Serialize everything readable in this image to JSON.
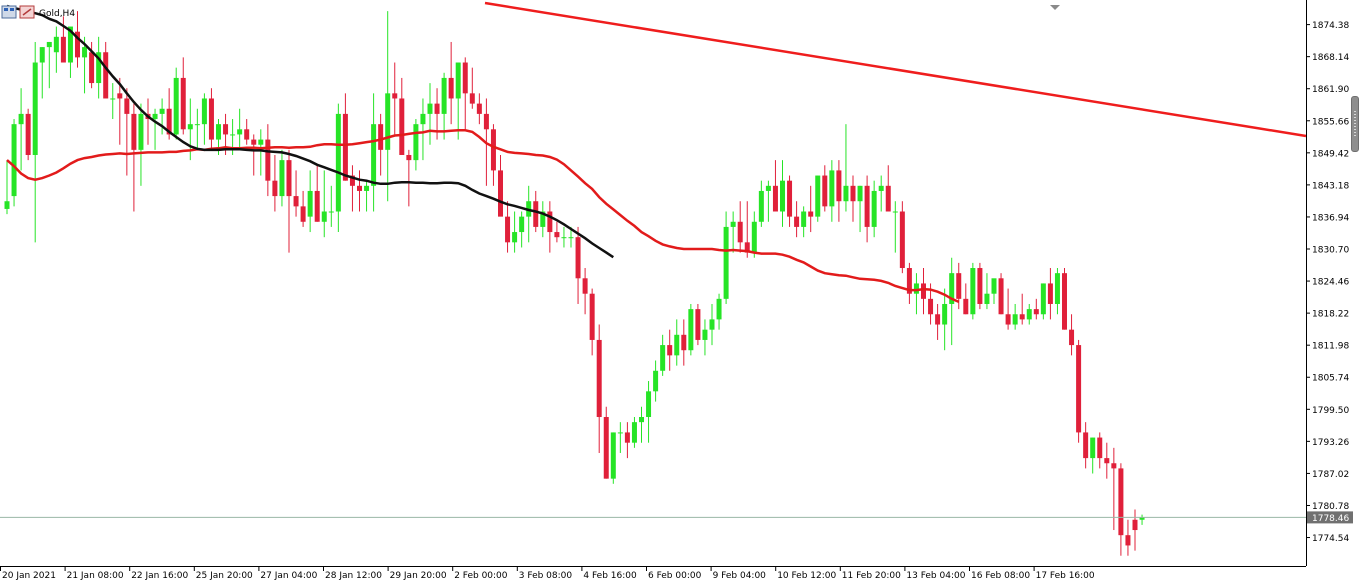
{
  "header": {
    "symbol_title": "Gold,H4"
  },
  "colors": {
    "bull": "#26e426",
    "bear": "#e0203a",
    "ma_red": "#e21b1b",
    "ma_black": "#111111",
    "trendline": "#ef1d1d",
    "price_line": "#9ab7a6"
  },
  "chart_data": {
    "type": "candlestick",
    "title": "Gold,H4",
    "ylim": [
      1769.0,
      1878.0
    ],
    "y_ticks": [
      1874.38,
      1868.14,
      1861.9,
      1855.66,
      1849.42,
      1843.18,
      1836.94,
      1830.7,
      1824.46,
      1818.22,
      1811.98,
      1805.74,
      1799.5,
      1793.26,
      1787.02,
      1780.78,
      1774.54
    ],
    "current_price": "1778.46",
    "x_labels": [
      "20 Jan 2021",
      "21 Jan 08:00",
      "22 Jan 16:00",
      "25 Jan 20:00",
      "27 Jan 04:00",
      "28 Jan 12:00",
      "29 Jan 20:00",
      "2 Feb 00:00",
      "3 Feb 08:00",
      "4 Feb 16:00",
      "6 Feb 00:00",
      "9 Feb 04:00",
      "10 Feb 12:00",
      "11 Feb 20:00",
      "13 Feb 04:00",
      "16 Feb 08:00",
      "17 Feb 16:00"
    ],
    "candles_ohlc": [
      [
        1838.5,
        1848.0,
        1837.5,
        1840.0
      ],
      [
        1841.0,
        1856.0,
        1839.0,
        1855.0
      ],
      [
        1855.0,
        1862.0,
        1846.0,
        1857.0
      ],
      [
        1857.0,
        1858.0,
        1848.0,
        1849.0
      ],
      [
        1849.0,
        1871.0,
        1832.0,
        1867.0
      ],
      [
        1867.0,
        1870.0,
        1860.0,
        1870.0
      ],
      [
        1870.0,
        1871.0,
        1862.0,
        1871.0
      ],
      [
        1869.0,
        1874.0,
        1865.0,
        1872.0
      ],
      [
        1872.0,
        1876.0,
        1867.0,
        1867.0
      ],
      [
        1867.0,
        1872.0,
        1864.0,
        1874.0
      ],
      [
        1873.0,
        1877.0,
        1866.0,
        1868.0
      ],
      [
        1868.0,
        1872.0,
        1861.0,
        1870.0
      ],
      [
        1869.0,
        1871.0,
        1862.0,
        1863.0
      ],
      [
        1863.0,
        1872.0,
        1860.0,
        1869.0
      ],
      [
        1869.0,
        1871.0,
        1862.0,
        1860.0
      ],
      [
        1860.0,
        1863.0,
        1856.0,
        1860.0
      ],
      [
        1861.0,
        1864.0,
        1851.0,
        1860.0
      ],
      [
        1860.0,
        1862.0,
        1845.0,
        1857.0
      ],
      [
        1857.0,
        1859.0,
        1838.0,
        1850.0
      ],
      [
        1850.0,
        1859.0,
        1843.0,
        1857.0
      ],
      [
        1857.0,
        1860.0,
        1851.0,
        1856.0
      ],
      [
        1856.0,
        1858.0,
        1850.0,
        1857.0
      ],
      [
        1857.0,
        1860.0,
        1853.0,
        1858.0
      ],
      [
        1858.0,
        1862.0,
        1852.0,
        1853.0
      ],
      [
        1853.0,
        1866.0,
        1852.0,
        1864.0
      ],
      [
        1864.0,
        1868.0,
        1853.0,
        1854.0
      ],
      [
        1854.0,
        1860.0,
        1848.0,
        1855.0
      ],
      [
        1855.0,
        1858.0,
        1850.0,
        1855.0
      ],
      [
        1855.0,
        1861.0,
        1851.0,
        1860.0
      ],
      [
        1860.0,
        1862.0,
        1850.0,
        1852.0
      ],
      [
        1852.0,
        1856.0,
        1849.0,
        1855.0
      ],
      [
        1855.0,
        1857.0,
        1849.0,
        1853.0
      ],
      [
        1853.0,
        1856.0,
        1849.0,
        1853.0
      ],
      [
        1853.0,
        1858.0,
        1850.0,
        1854.0
      ],
      [
        1854.0,
        1856.0,
        1851.0,
        1852.0
      ],
      [
        1852.0,
        1853.0,
        1845.0,
        1851.0
      ],
      [
        1851.0,
        1854.0,
        1845.0,
        1852.0
      ],
      [
        1852.0,
        1855.0,
        1841.0,
        1844.0
      ],
      [
        1844.0,
        1849.0,
        1838.0,
        1841.0
      ],
      [
        1841.0,
        1850.0,
        1839.0,
        1848.0
      ],
      [
        1848.0,
        1850.0,
        1830.0,
        1841.0
      ],
      [
        1841.0,
        1846.0,
        1837.0,
        1839.0
      ],
      [
        1839.0,
        1842.0,
        1835.0,
        1836.0
      ],
      [
        1837.0,
        1846.0,
        1834.0,
        1842.0
      ],
      [
        1842.0,
        1847.0,
        1836.0,
        1836.0
      ],
      [
        1836.0,
        1846.0,
        1833.0,
        1838.0
      ],
      [
        1838.0,
        1843.0,
        1835.0,
        1838.0
      ],
      [
        1838.0,
        1859.0,
        1834.0,
        1857.0
      ],
      [
        1857.0,
        1861.0,
        1844.0,
        1844.0
      ],
      [
        1845.0,
        1847.0,
        1838.0,
        1843.0
      ],
      [
        1843.0,
        1846.0,
        1838.0,
        1842.0
      ],
      [
        1842.0,
        1844.0,
        1838.0,
        1843.0
      ],
      [
        1843.0,
        1861.0,
        1838.0,
        1855.0
      ],
      [
        1855.0,
        1857.0,
        1845.0,
        1850.0
      ],
      [
        1850.0,
        1877.0,
        1840.0,
        1861.0
      ],
      [
        1861.0,
        1867.0,
        1853.0,
        1860.0
      ],
      [
        1860.0,
        1864.0,
        1851.0,
        1849.0
      ],
      [
        1849.0,
        1850.0,
        1839.0,
        1848.0
      ],
      [
        1848.0,
        1856.0,
        1846.0,
        1855.0
      ],
      [
        1855.0,
        1860.0,
        1848.0,
        1857.0
      ],
      [
        1857.0,
        1863.0,
        1851.0,
        1859.0
      ],
      [
        1859.0,
        1862.0,
        1852.0,
        1857.0
      ],
      [
        1857.0,
        1865.0,
        1852.0,
        1864.0
      ],
      [
        1864.0,
        1871.0,
        1855.0,
        1860.0
      ],
      [
        1860.0,
        1867.0,
        1852.0,
        1867.0
      ],
      [
        1867.0,
        1868.0,
        1854.0,
        1861.0
      ],
      [
        1861.0,
        1866.0,
        1858.0,
        1859.0
      ],
      [
        1859.0,
        1861.0,
        1855.0,
        1857.0
      ],
      [
        1857.0,
        1860.0,
        1843.0,
        1854.0
      ],
      [
        1854.0,
        1855.0,
        1843.0,
        1846.0
      ],
      [
        1846.0,
        1849.0,
        1839.0,
        1837.0
      ],
      [
        1837.0,
        1840.0,
        1830.0,
        1832.0
      ],
      [
        1832.0,
        1838.0,
        1830.0,
        1834.0
      ],
      [
        1834.0,
        1838.0,
        1831.0,
        1837.0
      ],
      [
        1837.0,
        1843.0,
        1832.0,
        1840.0
      ],
      [
        1840.0,
        1842.0,
        1834.0,
        1835.0
      ],
      [
        1835.0,
        1840.0,
        1833.0,
        1838.0
      ],
      [
        1838.0,
        1840.0,
        1830.0,
        1834.0
      ],
      [
        1834.0,
        1836.0,
        1832.0,
        1833.0
      ],
      [
        1833.0,
        1835.0,
        1831.0,
        1833.0
      ],
      [
        1833.0,
        1835.0,
        1831.0,
        1833.0
      ],
      [
        1833.0,
        1835.0,
        1820.0,
        1825.0
      ],
      [
        1825.0,
        1827.0,
        1818.0,
        1822.0
      ],
      [
        1822.0,
        1823.0,
        1810.0,
        1813.0
      ],
      [
        1813.0,
        1816.0,
        1791.0,
        1798.0
      ],
      [
        1798.0,
        1800.0,
        1786.0,
        1786.0
      ],
      [
        1786.0,
        1795.0,
        1785.0,
        1795.0
      ],
      [
        1795.0,
        1797.0,
        1791.0,
        1795.0
      ],
      [
        1795.0,
        1797.0,
        1790.0,
        1793.0
      ],
      [
        1793.0,
        1798.0,
        1792.0,
        1797.0
      ],
      [
        1797.0,
        1800.0,
        1793.0,
        1798.0
      ],
      [
        1798.0,
        1805.0,
        1793.0,
        1803.0
      ],
      [
        1803.0,
        1809.0,
        1801.0,
        1807.0
      ],
      [
        1807.0,
        1814.0,
        1806.0,
        1812.0
      ],
      [
        1812.0,
        1815.0,
        1807.0,
        1810.0
      ],
      [
        1810.0,
        1817.0,
        1808.0,
        1814.0
      ],
      [
        1814.0,
        1817.0,
        1808.0,
        1811.0
      ],
      [
        1811.0,
        1820.0,
        1810.0,
        1819.0
      ],
      [
        1819.0,
        1820.0,
        1812.0,
        1813.0
      ],
      [
        1813.0,
        1817.0,
        1810.0,
        1815.0
      ],
      [
        1815.0,
        1820.0,
        1812.0,
        1817.0
      ],
      [
        1817.0,
        1822.0,
        1815.0,
        1821.0
      ],
      [
        1821.0,
        1838.0,
        1820.0,
        1835.0
      ],
      [
        1835.0,
        1838.0,
        1830.0,
        1836.0
      ],
      [
        1836.0,
        1840.0,
        1830.0,
        1832.0
      ],
      [
        1832.0,
        1840.0,
        1829.0,
        1830.0
      ],
      [
        1830.0,
        1838.0,
        1829.0,
        1836.0
      ],
      [
        1836.0,
        1844.0,
        1835.0,
        1842.0
      ],
      [
        1842.0,
        1844.0,
        1836.0,
        1843.0
      ],
      [
        1843.0,
        1848.0,
        1841.0,
        1838.0
      ],
      [
        1838.0,
        1848.0,
        1835.0,
        1844.0
      ],
      [
        1844.0,
        1845.0,
        1835.0,
        1837.0
      ],
      [
        1837.0,
        1840.0,
        1833.0,
        1835.0
      ],
      [
        1835.0,
        1839.0,
        1833.0,
        1838.0
      ],
      [
        1838.0,
        1843.0,
        1834.0,
        1837.0
      ],
      [
        1837.0,
        1845.0,
        1836.0,
        1845.0
      ],
      [
        1845.0,
        1847.0,
        1838.0,
        1839.0
      ],
      [
        1839.0,
        1848.0,
        1836.0,
        1846.0
      ],
      [
        1846.0,
        1848.0,
        1836.0,
        1840.0
      ],
      [
        1840.0,
        1855.0,
        1838.0,
        1843.0
      ],
      [
        1843.0,
        1845.0,
        1836.0,
        1840.0
      ],
      [
        1840.0,
        1843.0,
        1834.0,
        1843.0
      ],
      [
        1843.0,
        1845.0,
        1832.0,
        1835.0
      ],
      [
        1835.0,
        1844.0,
        1833.0,
        1842.0
      ],
      [
        1842.0,
        1845.0,
        1838.0,
        1843.0
      ],
      [
        1843.0,
        1847.0,
        1839.0,
        1838.0
      ],
      [
        1838.0,
        1840.0,
        1830.0,
        1838.0
      ],
      [
        1838.0,
        1840.0,
        1826.0,
        1827.0
      ],
      [
        1827.0,
        1828.0,
        1820.0,
        1822.0
      ],
      [
        1822.0,
        1826.0,
        1818.0,
        1824.0
      ],
      [
        1824.0,
        1827.0,
        1818.0,
        1821.0
      ],
      [
        1821.0,
        1824.0,
        1816.0,
        1818.0
      ],
      [
        1818.0,
        1820.0,
        1813.0,
        1816.0
      ],
      [
        1816.0,
        1823.0,
        1811.0,
        1820.0
      ],
      [
        1820.0,
        1829.0,
        1812.0,
        1826.0
      ],
      [
        1826.0,
        1828.0,
        1819.0,
        1821.0
      ],
      [
        1821.0,
        1824.0,
        1818.0,
        1818.0
      ],
      [
        1818.0,
        1828.0,
        1817.0,
        1827.0
      ],
      [
        1827.0,
        1828.0,
        1819.0,
        1820.0
      ],
      [
        1820.0,
        1826.0,
        1819.0,
        1822.0
      ],
      [
        1822.0,
        1824.0,
        1820.0,
        1825.0
      ],
      [
        1825.0,
        1826.0,
        1818.0,
        1818.0
      ],
      [
        1818.0,
        1823.0,
        1815.0,
        1816.0
      ],
      [
        1816.0,
        1820.0,
        1815.0,
        1818.0
      ],
      [
        1818.0,
        1822.0,
        1816.0,
        1817.0
      ],
      [
        1817.0,
        1820.0,
        1816.0,
        1819.0
      ],
      [
        1819.0,
        1821.0,
        1817.0,
        1818.0
      ],
      [
        1818.0,
        1824.0,
        1817.0,
        1824.0
      ],
      [
        1824.0,
        1827.0,
        1817.0,
        1820.0
      ],
      [
        1820.0,
        1827.0,
        1818.0,
        1826.0
      ],
      [
        1826.0,
        1827.0,
        1815.0,
        1815.0
      ],
      [
        1815.0,
        1818.0,
        1810.0,
        1812.0
      ],
      [
        1812.0,
        1813.0,
        1793.0,
        1795.0
      ],
      [
        1795.0,
        1797.0,
        1788.0,
        1790.0
      ],
      [
        1790.0,
        1794.0,
        1787.0,
        1794.0
      ],
      [
        1794.0,
        1795.0,
        1788.0,
        1790.0
      ],
      [
        1790.0,
        1793.0,
        1786.0,
        1789.0
      ],
      [
        1789.0,
        1792.0,
        1776.0,
        1788.0
      ],
      [
        1788.0,
        1789.0,
        1771.0,
        1775.0
      ],
      [
        1775.0,
        1778.0,
        1771.0,
        1773.0
      ],
      [
        1778.0,
        1780.0,
        1772.0,
        1776.0
      ],
      [
        1778.0,
        1779.0,
        1777.0,
        1778.5
      ]
    ],
    "ma_red": [
      1848.0,
      1846.8,
      1845.4,
      1844.5,
      1844.2,
      1844.5,
      1845.0,
      1845.6,
      1846.4,
      1847.3,
      1848.0,
      1848.4,
      1848.6,
      1848.9,
      1849.1,
      1849.2,
      1849.3,
      1849.2,
      1849.3,
      1849.4,
      1849.5,
      1849.5,
      1849.5,
      1849.6,
      1849.6,
      1849.8,
      1849.9,
      1850.1,
      1850.0,
      1850.2,
      1850.3,
      1850.5,
      1850.3,
      1850.3,
      1850.4,
      1850.4,
      1850.3,
      1850.4,
      1850.5,
      1850.5,
      1850.4,
      1850.5,
      1850.5,
      1850.6,
      1850.9,
      1851.1,
      1851.1,
      1851.0,
      1851.0,
      1851.1,
      1851.3,
      1851.5,
      1851.7,
      1852.0,
      1852.4,
      1852.8,
      1852.9,
      1853.1,
      1853.3,
      1853.4,
      1853.7,
      1853.6,
      1853.6,
      1853.7,
      1853.8,
      1853.8,
      1853.5,
      1852.5,
      1851.3,
      1850.6,
      1850.1,
      1849.6,
      1849.4,
      1849.3,
      1849.2,
      1849.0,
      1848.9,
      1848.6,
      1848.1,
      1847.2,
      1846.0,
      1844.8,
      1843.5,
      1842.4,
      1840.8,
      1839.5,
      1838.4,
      1837.3,
      1836.2,
      1835.2,
      1834.0,
      1833.2,
      1832.3,
      1831.6,
      1831.2,
      1830.9,
      1830.7,
      1830.7,
      1830.7,
      1830.7,
      1830.7,
      1830.5,
      1830.4,
      1830.5,
      1830.4,
      1830.3,
      1830.0,
      1829.8,
      1829.8,
      1829.8,
      1829.6,
      1829.2,
      1828.6,
      1828.1,
      1827.3,
      1826.5,
      1826.0,
      1825.8,
      1825.6,
      1825.5,
      1825.2,
      1824.9,
      1824.8,
      1824.7,
      1824.5,
      1824.1,
      1823.5,
      1823.1,
      1822.7,
      1822.7,
      1822.9,
      1822.8,
      1822.4,
      1821.8,
      1821.0,
      1820.4
    ],
    "ma_black": [
      1878.0,
      1877.6,
      1877.3,
      1876.9,
      1876.6,
      1876.2,
      1875.5,
      1875.0,
      1874.1,
      1873.2,
      1871.8,
      1870.6,
      1869.2,
      1867.8,
      1866.0,
      1864.3,
      1862.8,
      1861.0,
      1859.3,
      1857.8,
      1856.5,
      1855.5,
      1854.6,
      1853.5,
      1852.5,
      1851.5,
      1850.7,
      1850.2,
      1850.0,
      1850.0,
      1850.0,
      1850.1,
      1850.1,
      1850.1,
      1850.0,
      1849.9,
      1849.9,
      1849.7,
      1849.6,
      1849.5,
      1849.2,
      1848.8,
      1848.3,
      1847.8,
      1847.1,
      1846.6,
      1846.1,
      1845.6,
      1845.0,
      1844.6,
      1844.2,
      1844.0,
      1843.6,
      1843.4,
      1843.4,
      1843.6,
      1843.7,
      1843.7,
      1843.6,
      1843.6,
      1843.5,
      1843.5,
      1843.6,
      1843.6,
      1843.5,
      1843.0,
      1842.2,
      1841.5,
      1841.0,
      1840.5,
      1839.9,
      1839.4,
      1839.1,
      1838.7,
      1838.3,
      1838.0,
      1837.6,
      1837.0,
      1836.3,
      1835.5,
      1834.6,
      1833.7,
      1832.8,
      1831.8,
      1830.9,
      1830.0,
      1829.1
    ]
  }
}
